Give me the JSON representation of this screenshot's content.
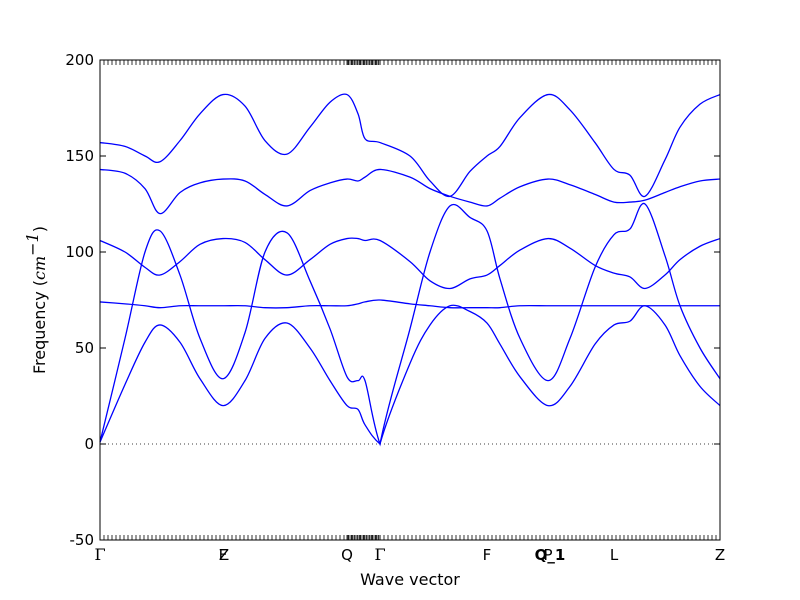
{
  "chart_data": {
    "type": "line",
    "title": "",
    "xlabel": "Wave vector",
    "ylabel_prefix": "Frequency (",
    "ylabel_unit": "cm",
    "ylabel_exp": "−1",
    "ylabel_suffix": ")",
    "ylim": [
      -50,
      200
    ],
    "yticks": [
      -50,
      0,
      50,
      100,
      150,
      200
    ],
    "xlim": [
      0,
      620
    ],
    "grid": false,
    "legend": "none",
    "line_color": "#0000ff",
    "zero_line": {
      "y": 0,
      "style": "dotted"
    },
    "high_symmetry_points": [
      {
        "label": "Γ",
        "x": 0
      },
      {
        "label": "F",
        "x": 123
      },
      {
        "label": "Z",
        "x": 124
      },
      {
        "label": "Q",
        "x": 247
      },
      {
        "label": "Γ",
        "x": 280
      },
      {
        "label": "F",
        "x": 387
      },
      {
        "label": "P",
        "x": 448
      },
      {
        "label": "Q_1",
        "x": 450
      },
      {
        "label": "L",
        "x": 514
      },
      {
        "label": "Z",
        "x": 620
      }
    ],
    "x": [
      0,
      25,
      45,
      60,
      80,
      100,
      123,
      145,
      165,
      187,
      210,
      230,
      247,
      258,
      265,
      280,
      310,
      330,
      350,
      370,
      387,
      400,
      420,
      448,
      470,
      495,
      514,
      530,
      545,
      565,
      580,
      600,
      620
    ],
    "series": [
      {
        "values": [
          1,
          31,
          53,
          62,
          53,
          34,
          20,
          33,
          55,
          63,
          50,
          33,
          20,
          18,
          10,
          0,
          42,
          62,
          72,
          69,
          63,
          52,
          35,
          20,
          30,
          52,
          62,
          64,
          72,
          62,
          46,
          30,
          20
        ]
      },
      {
        "values": [
          1,
          55,
          100,
          111,
          88,
          55,
          34,
          58,
          100,
          110,
          85,
          60,
          35,
          33,
          33,
          0,
          60,
          100,
          124,
          118,
          111,
          86,
          55,
          33,
          55,
          92,
          109,
          112,
          125,
          98,
          72,
          50,
          34
        ]
      },
      {
        "values": [
          74,
          73,
          72,
          71,
          72,
          72,
          72,
          72,
          71,
          71,
          72,
          72,
          72,
          73,
          74,
          75,
          73,
          72,
          71,
          71,
          71,
          71,
          72,
          72,
          72,
          72,
          72,
          72,
          72,
          72,
          72,
          72,
          72
        ]
      },
      {
        "values": [
          106,
          100,
          92,
          88,
          95,
          104,
          107,
          105,
          96,
          88,
          96,
          104,
          107,
          107,
          106,
          106,
          95,
          85,
          81,
          86,
          88,
          93,
          101,
          107,
          102,
          93,
          89,
          87,
          81,
          88,
          96,
          103,
          107
        ]
      },
      {
        "values": [
          143,
          141,
          133,
          120,
          131,
          136,
          138,
          137,
          130,
          124,
          132,
          136,
          138,
          137,
          139,
          143,
          139,
          133,
          129,
          126,
          124,
          128,
          134,
          138,
          135,
          130,
          126,
          126,
          127,
          131,
          134,
          137,
          138
        ]
      },
      {
        "values": [
          157,
          155,
          150,
          147,
          158,
          172,
          182,
          176,
          158,
          151,
          165,
          178,
          182,
          172,
          159,
          157,
          150,
          137,
          129,
          142,
          150,
          155,
          170,
          182,
          174,
          157,
          143,
          140,
          129,
          148,
          165,
          177,
          182
        ]
      }
    ]
  }
}
